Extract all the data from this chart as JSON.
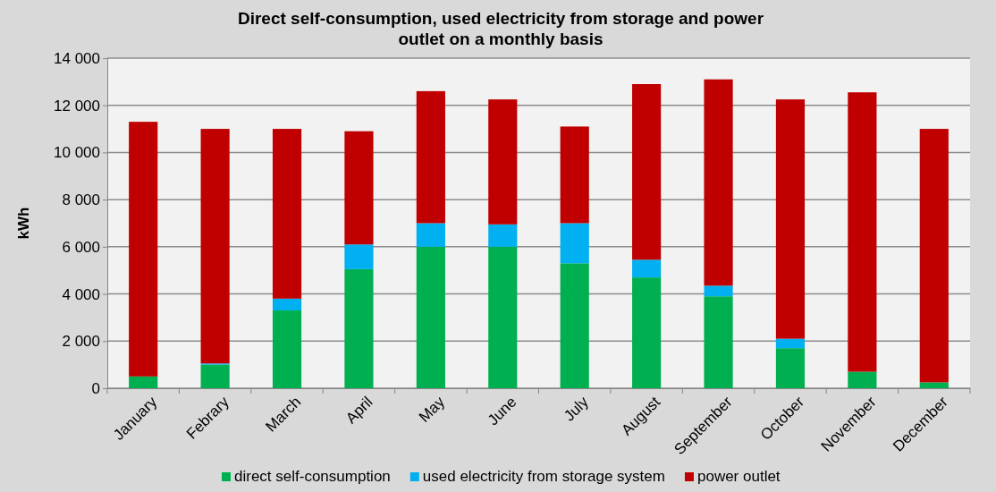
{
  "chart_data": {
    "type": "bar",
    "title": "Direct self-consumption, used electricity from storage and power outlet on a monthly basis",
    "ylabel": "kWh",
    "categories": [
      "January",
      "Febrary",
      "March",
      "April",
      "May",
      "June",
      "July",
      "August",
      "September",
      "October",
      "November",
      "December"
    ],
    "stacked": true,
    "ylim": [
      0,
      14000
    ],
    "yticks": [
      {
        "value": 0,
        "label": "0"
      },
      {
        "value": 2000,
        "label": "2 000"
      },
      {
        "value": 4000,
        "label": "4 000"
      },
      {
        "value": 6000,
        "label": "6 000"
      },
      {
        "value": 8000,
        "label": "8 000"
      },
      {
        "value": 10000,
        "label": "10 000"
      },
      {
        "value": 12000,
        "label": "12 000"
      },
      {
        "value": 14000,
        "label": "14 000"
      }
    ],
    "grid": "y",
    "legend": "bottom",
    "series": [
      {
        "name": "direct self-consumption",
        "color": "#00b050",
        "values": [
          500,
          1000,
          3300,
          5050,
          6000,
          6000,
          5300,
          4700,
          3900,
          1700,
          700,
          250
        ]
      },
      {
        "name": "used electricity from storage system",
        "color": "#00b0f0",
        "values": [
          0,
          50,
          500,
          1050,
          1000,
          950,
          1700,
          750,
          450,
          400,
          0,
          0
        ]
      },
      {
        "name": "power outlet",
        "color": "#c00000",
        "values": [
          10800,
          9950,
          7200,
          4800,
          5600,
          5300,
          4100,
          7450,
          8750,
          10150,
          11850,
          10750
        ]
      }
    ]
  }
}
